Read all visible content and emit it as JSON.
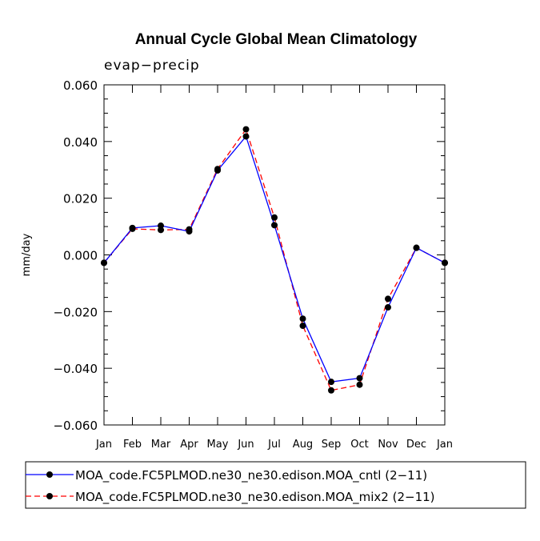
{
  "chart_data": {
    "type": "line",
    "title": "Annual Cycle Global Mean Climatology",
    "subtitle": "evap-precip",
    "xlabel": "",
    "ylabel": "mm/day",
    "categories": [
      "Jan",
      "Feb",
      "Mar",
      "Apr",
      "May",
      "Jun",
      "Jul",
      "Aug",
      "Sep",
      "Oct",
      "Nov",
      "Dec",
      "Jan"
    ],
    "ylim": [
      -0.06,
      0.06
    ],
    "yticks": [
      -0.06,
      -0.04,
      -0.02,
      0.0,
      0.02,
      0.04,
      0.06
    ],
    "ytick_labels": [
      "-0.060",
      "-0.040",
      "-0.020",
      "0.000",
      "0.020",
      "0.040",
      "0.060"
    ],
    "series": [
      {
        "name": "MOA_code.FC5PLMOD.ne30_ne30.edison.MOA_cntl (2-11)",
        "color": "#0000ff",
        "dash": "solid",
        "values": [
          -0.0028,
          0.0095,
          0.0103,
          0.0083,
          0.0298,
          0.0418,
          0.0105,
          -0.0225,
          -0.0448,
          -0.0435,
          -0.0185,
          0.0025,
          -0.0028
        ]
      },
      {
        "name": "MOA_code.FC5PLMOD.ne30_ne30.edison.MOA_mix2 (2-11)",
        "color": "#ff0000",
        "dash": "dashed",
        "values": [
          -0.0028,
          0.0092,
          0.0088,
          0.009,
          0.0303,
          0.0443,
          0.0132,
          -0.025,
          -0.0478,
          -0.0458,
          -0.0155,
          0.0025,
          -0.0028
        ]
      }
    ],
    "legend": "below"
  }
}
